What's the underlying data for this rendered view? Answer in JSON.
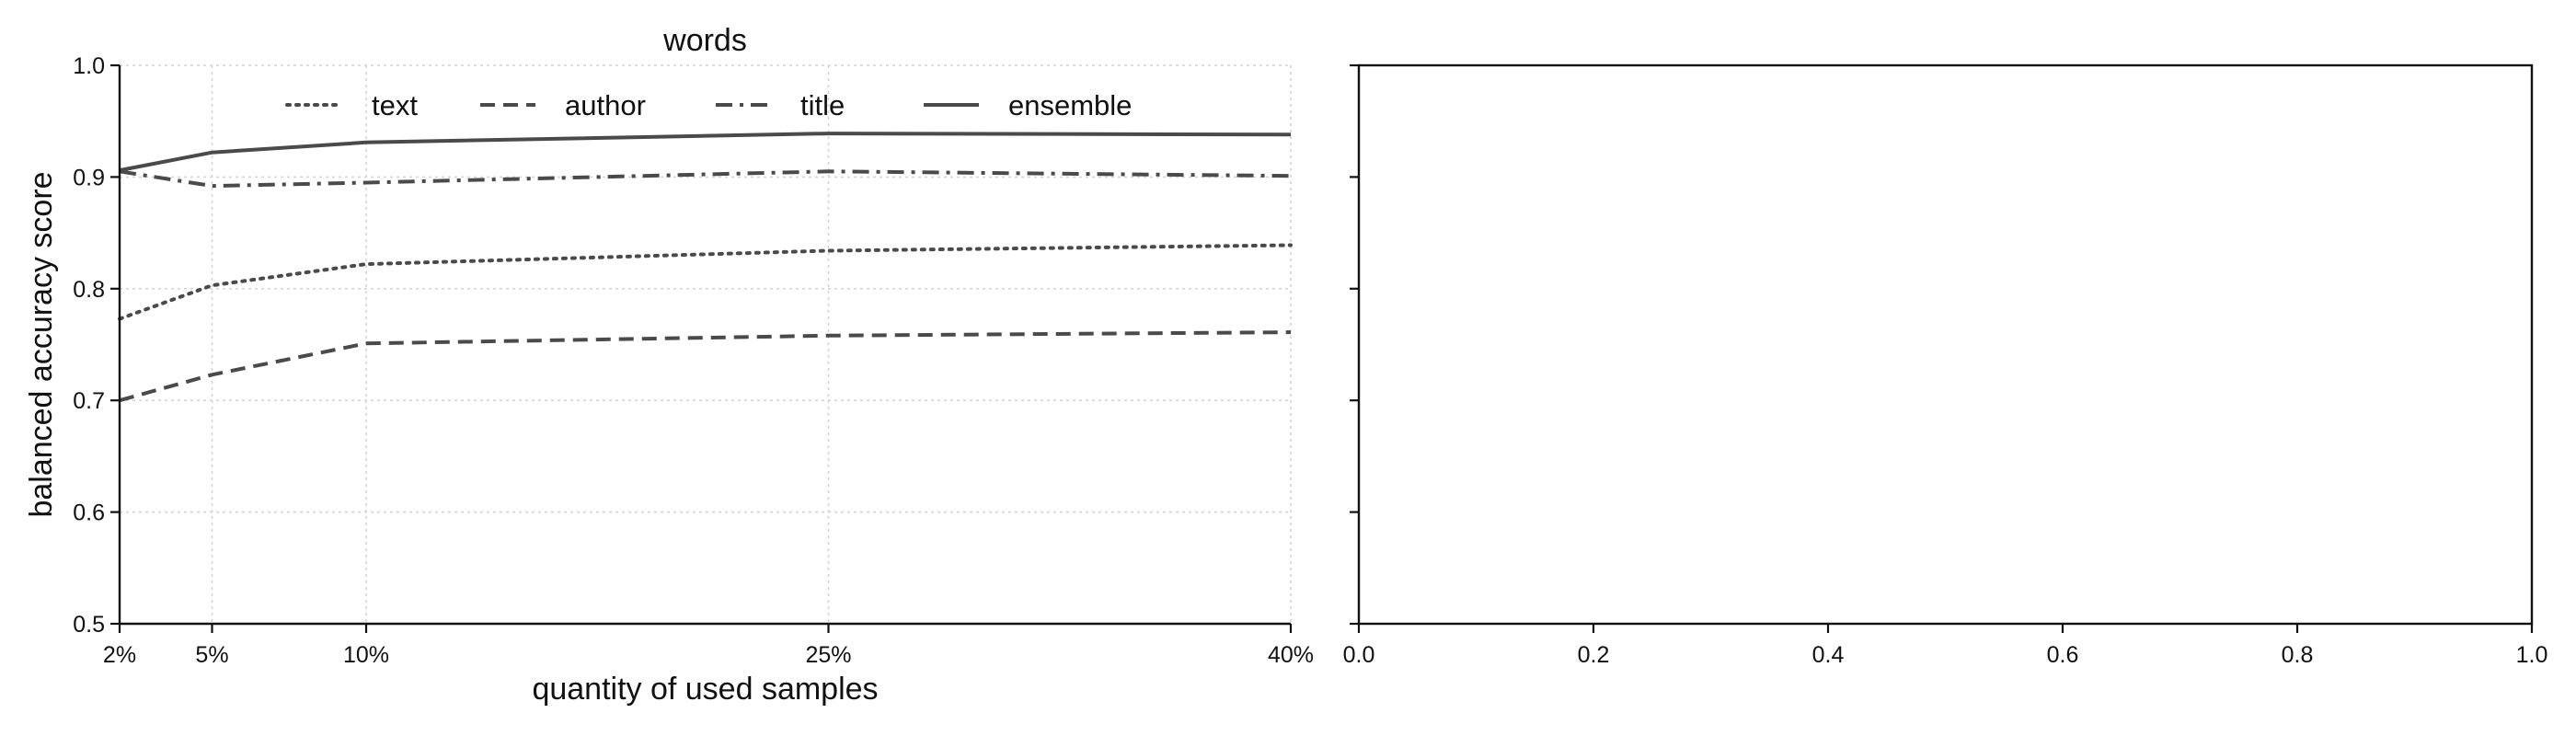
{
  "chart_data": [
    {
      "type": "line",
      "title": "words",
      "xlabel": "quantity of used samples",
      "ylabel": "balanced accuracy score",
      "x": [
        2,
        5,
        10,
        25,
        40
      ],
      "x_tick_labels": [
        "2%",
        "5%",
        "10%",
        "25%",
        "40%"
      ],
      "xlim": [
        2,
        40
      ],
      "ylim": [
        0.5,
        1.0
      ],
      "y_ticks": [
        0.5,
        0.6,
        0.7,
        0.8,
        0.9,
        1.0
      ],
      "y_tick_labels": [
        "0.5",
        "0.6",
        "0.7",
        "0.8",
        "0.9",
        "1.0"
      ],
      "grid": true,
      "legend_position": "top",
      "series": [
        {
          "name": "text",
          "style": "dotted",
          "color": "#4a4a4a",
          "values": [
            0.773,
            0.803,
            0.822,
            0.834,
            0.839
          ]
        },
        {
          "name": "author",
          "style": "dashed",
          "color": "#4a4a4a",
          "values": [
            0.7,
            0.723,
            0.751,
            0.758,
            0.761
          ]
        },
        {
          "name": "title",
          "style": "dashdot",
          "color": "#4a4a4a",
          "values": [
            0.905,
            0.892,
            0.895,
            0.905,
            0.901
          ]
        },
        {
          "name": "ensemble",
          "style": "solid",
          "color": "#4a4a4a",
          "values": [
            0.906,
            0.922,
            0.931,
            0.939,
            0.938
          ]
        }
      ]
    },
    {
      "type": "line",
      "title": "",
      "xlabel": "",
      "ylabel": "",
      "xlim": [
        0.0,
        1.0
      ],
      "ylim": [
        0.5,
        1.0
      ],
      "x_ticks": [
        0.0,
        0.2,
        0.4,
        0.6,
        0.8,
        1.0
      ],
      "x_tick_labels": [
        "0.0",
        "0.2",
        "0.4",
        "0.6",
        "0.8",
        "1.0"
      ],
      "y_ticks": [
        0.5,
        0.6,
        0.7,
        0.8,
        0.9,
        1.0
      ],
      "grid": false,
      "series": []
    }
  ]
}
